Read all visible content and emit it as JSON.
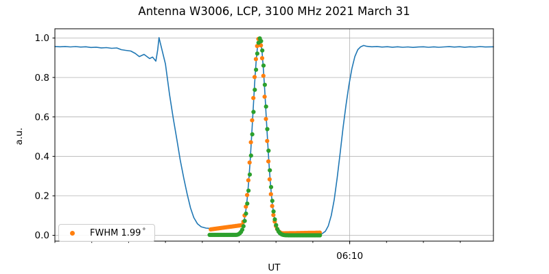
{
  "title": "Antenna W3006, LCP, 3100 MHz 2021 March 31",
  "axes": {
    "xlabel": "UT",
    "ylabel": "a.u.",
    "y_tick_labels": [
      "0.0",
      "0.2",
      "0.4",
      "0.6",
      "0.8",
      "1.0"
    ],
    "x_major_tick_label": "06:10"
  },
  "legend": {
    "label": "FWHM 1.99",
    "unit": "°"
  },
  "colors": {
    "line": "#1f77b4",
    "orange": "#ff7f0e",
    "green": "#2ca02c",
    "grid": "#b0b0b0",
    "spine": "#000000",
    "background": "#ffffff"
  },
  "chart_data": {
    "type": "line+scatter",
    "title": "Antenna W3006, LCP, 3100 MHz 2021 March 31",
    "xlabel": "UT",
    "ylabel": "a.u.",
    "x_axis": {
      "unit": "minutes after 05:30 UT",
      "range_min": [
        0,
        59.5
      ],
      "minor_ticks_min": [
        0,
        5,
        10,
        15,
        20,
        25,
        30,
        35,
        40,
        45,
        50,
        55
      ],
      "major_tick": {
        "t": 40,
        "label": "06:10"
      },
      "grid_on_major": true
    },
    "y_axis": {
      "range": [
        -0.031,
        1.047
      ],
      "ticks": [
        0.0,
        0.2,
        0.4,
        0.6,
        0.8,
        1.0
      ],
      "grid": true
    },
    "legend_position": "lower left",
    "series": [
      {
        "name": "blue-drift-scan-line",
        "type": "line",
        "color_key": "line",
        "points": [
          [
            0,
            0.957
          ],
          [
            0.7,
            0.9555
          ],
          [
            1.4,
            0.957
          ],
          [
            2.1,
            0.955
          ],
          [
            2.8,
            0.9565
          ],
          [
            3.5,
            0.954
          ],
          [
            4.2,
            0.9555
          ],
          [
            4.9,
            0.952
          ],
          [
            5.6,
            0.9535
          ],
          [
            6.3,
            0.95
          ],
          [
            7,
            0.9515
          ],
          [
            7.7,
            0.948
          ],
          [
            8.4,
            0.9495
          ],
          [
            9,
            0.941
          ],
          [
            9.6,
            0.9375
          ],
          [
            10.3,
            0.934
          ],
          [
            10.9,
            0.922
          ],
          [
            11.45,
            0.906
          ],
          [
            12.1,
            0.917
          ],
          [
            12.85,
            0.896
          ],
          [
            13.25,
            0.9035
          ],
          [
            13.7,
            0.883
          ],
          [
            13.95,
            0.94
          ],
          [
            14.13,
            1.002
          ],
          [
            14.45,
            0.952
          ],
          [
            15,
            0.868
          ],
          [
            15.55,
            0.715
          ],
          [
            16.05,
            0.594
          ],
          [
            16.55,
            0.486
          ],
          [
            17,
            0.382
          ],
          [
            17.5,
            0.288
          ],
          [
            17.95,
            0.208
          ],
          [
            18.4,
            0.139
          ],
          [
            18.85,
            0.09
          ],
          [
            19.35,
            0.058
          ],
          [
            19.85,
            0.043
          ],
          [
            20.5,
            0.0365
          ],
          [
            21.3,
            0.034
          ],
          [
            22.3,
            0.037
          ],
          [
            23.3,
            0.0415
          ],
          [
            24.3,
            0.046
          ],
          [
            25.1,
            0.0505
          ],
          [
            25.6,
            0.056
          ],
          [
            25.9,
            0.124
          ],
          [
            26.1,
            0.188
          ],
          [
            26.3,
            0.273
          ],
          [
            26.5,
            0.38
          ],
          [
            26.7,
            0.504
          ],
          [
            26.9,
            0.637
          ],
          [
            27.1,
            0.767
          ],
          [
            27.3,
            0.88
          ],
          [
            27.5,
            0.961
          ],
          [
            27.7,
            0.9996
          ],
          [
            27.9,
            0.99
          ],
          [
            28.1,
            0.933
          ],
          [
            28.3,
            0.838
          ],
          [
            28.5,
            0.716
          ],
          [
            28.7,
            0.583
          ],
          [
            28.9,
            0.452
          ],
          [
            29.1,
            0.335
          ],
          [
            29.3,
            0.236
          ],
          [
            29.5,
            0.159
          ],
          [
            29.7,
            0.103
          ],
          [
            29.9,
            0.065
          ],
          [
            30.1,
            0.04
          ],
          [
            30.3,
            0.0245
          ],
          [
            30.7,
            0.0108
          ],
          [
            31.2,
            0.0067
          ],
          [
            31.8,
            0.006
          ],
          [
            32.6,
            0.0065
          ],
          [
            33.4,
            0.006
          ],
          [
            34.2,
            0.0062
          ],
          [
            35,
            0.006
          ],
          [
            35.8,
            0.0068
          ],
          [
            36.3,
            0.009
          ],
          [
            36.7,
            0.02
          ],
          [
            37.1,
            0.048
          ],
          [
            37.5,
            0.1
          ],
          [
            37.9,
            0.18
          ],
          [
            38.3,
            0.29
          ],
          [
            38.7,
            0.415
          ],
          [
            39.1,
            0.545
          ],
          [
            39.5,
            0.66
          ],
          [
            39.9,
            0.762
          ],
          [
            40.3,
            0.845
          ],
          [
            40.7,
            0.906
          ],
          [
            41.1,
            0.941
          ],
          [
            41.5,
            0.956
          ],
          [
            41.9,
            0.962
          ],
          [
            42.3,
            0.958
          ],
          [
            43,
            0.9555
          ],
          [
            43.7,
            0.957
          ],
          [
            44.4,
            0.954
          ],
          [
            45.1,
            0.956
          ],
          [
            45.8,
            0.9535
          ],
          [
            46.5,
            0.9555
          ],
          [
            47.2,
            0.953
          ],
          [
            47.9,
            0.955
          ],
          [
            48.6,
            0.9525
          ],
          [
            49.3,
            0.9545
          ],
          [
            50,
            0.9555
          ],
          [
            50.7,
            0.953
          ],
          [
            51.4,
            0.9553
          ],
          [
            52.1,
            0.9532
          ],
          [
            52.8,
            0.955
          ],
          [
            53.5,
            0.9562
          ],
          [
            54.2,
            0.954
          ],
          [
            54.9,
            0.9558
          ],
          [
            55.6,
            0.9535
          ],
          [
            56.3,
            0.9555
          ],
          [
            57,
            0.954
          ],
          [
            57.7,
            0.9565
          ],
          [
            58.4,
            0.9545
          ],
          [
            59.5,
            0.9555
          ]
        ]
      },
      {
        "name": "orange-fwhm-dots",
        "type": "scatter",
        "color_key": "orange",
        "legend_label": "FWHM 1.99 °",
        "sampling": {
          "t_start": 21.15,
          "t_end": 36.1,
          "dt": 0.17
        },
        "gaussian": {
          "center": 27.7,
          "sigma": 0.9,
          "amplitude": 0.992,
          "offset": 0.008
        },
        "baseline": {
          "left": {
            "t0": 21.15,
            "v0": 0.03,
            "t1": 25.8,
            "v1": 0.0535
          },
          "right": {
            "t0": 29.4,
            "v0": 0.009,
            "t1": 36.1,
            "v1": 0.0135
          }
        }
      },
      {
        "name": "green-background-subtracted-dots",
        "type": "scatter",
        "color_key": "green",
        "sampling": {
          "t_start": 21.0,
          "t_end": 36.05,
          "dt": 0.17
        },
        "gaussian": {
          "center": 27.82,
          "sigma": 0.9,
          "amplitude": 0.998,
          "offset": 0.0
        },
        "baseline": {
          "left": {
            "t0": 21.0,
            "v0": 0.002,
            "t1": 27.8,
            "v1": 0.002
          },
          "right": {
            "t0": 29.5,
            "v0": 0.0,
            "t1": 36.05,
            "v1": 0.0
          }
        }
      }
    ]
  }
}
